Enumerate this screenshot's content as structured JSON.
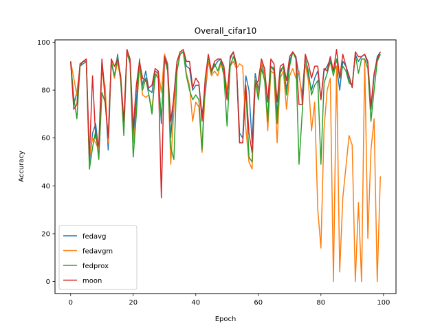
{
  "chart_data": {
    "type": "line",
    "title": "Overall_cifar10",
    "xlabel": "Epoch",
    "ylabel": "Accuracy",
    "xlim": [
      -5,
      104
    ],
    "ylim": [
      -5,
      101
    ],
    "xticks": [
      0,
      20,
      40,
      60,
      80,
      100
    ],
    "yticks": [
      0,
      20,
      40,
      60,
      80,
      100
    ],
    "grid": false,
    "legend_position": "lower-left",
    "x": [
      0,
      1,
      2,
      3,
      4,
      5,
      6,
      7,
      8,
      9,
      10,
      11,
      12,
      13,
      14,
      15,
      16,
      17,
      18,
      19,
      20,
      21,
      22,
      23,
      24,
      25,
      26,
      27,
      28,
      29,
      30,
      31,
      32,
      33,
      34,
      35,
      36,
      37,
      38,
      39,
      40,
      41,
      42,
      43,
      44,
      45,
      46,
      47,
      48,
      49,
      50,
      51,
      52,
      53,
      54,
      55,
      56,
      57,
      58,
      59,
      60,
      61,
      62,
      63,
      64,
      65,
      66,
      67,
      68,
      69,
      70,
      71,
      72,
      73,
      74,
      75,
      76,
      77,
      78,
      79,
      80,
      81,
      82,
      83,
      84,
      85,
      86,
      87,
      88,
      89,
      90,
      91,
      92,
      93,
      94,
      95,
      96,
      97,
      98,
      99
    ],
    "series": [
      {
        "name": "fedavg",
        "color": "#1f77b4",
        "values": [
          92,
          74,
          79,
          90,
          91,
          92,
          50,
          62,
          66,
          54,
          92,
          80,
          55,
          92,
          85,
          95,
          84,
          66,
          96,
          92,
          60,
          76,
          92,
          82,
          88,
          80,
          79,
          88,
          87,
          66,
          95,
          91,
          60,
          78,
          92,
          95,
          96,
          90,
          89,
          80,
          82,
          82,
          70,
          78,
          92,
          88,
          90,
          92,
          93,
          88,
          76,
          93,
          96,
          90,
          62,
          60,
          86,
          80,
          58,
          87,
          80,
          91,
          86,
          68,
          90,
          89,
          70,
          88,
          90,
          80,
          92,
          96,
          94,
          86,
          78,
          94,
          86,
          80,
          85,
          88,
          76,
          88,
          90,
          93,
          88,
          90,
          80,
          92,
          90,
          84,
          82,
          95,
          92,
          94,
          95,
          91,
          72,
          86,
          94,
          96
        ]
      },
      {
        "name": "fedavgm",
        "color": "#ff7f0e",
        "values": [
          92,
          85,
          78,
          90,
          92,
          93,
          52,
          60,
          58,
          55,
          88,
          82,
          58,
          93,
          85,
          92,
          84,
          66,
          95,
          92,
          58,
          70,
          90,
          78,
          77,
          78,
          72,
          85,
          88,
          79,
          95,
          90,
          49,
          72,
          88,
          96,
          96,
          87,
          82,
          67,
          75,
          73,
          54,
          80,
          92,
          86,
          88,
          86,
          91,
          89,
          80,
          90,
          92,
          89,
          91,
          90,
          64,
          50,
          47,
          85,
          78,
          92,
          87,
          63,
          88,
          87,
          58,
          85,
          88,
          72,
          86,
          89,
          85,
          88,
          75,
          91,
          84,
          63,
          75,
          30,
          14,
          64,
          80,
          85,
          0,
          90,
          4,
          35,
          48,
          61,
          57,
          0,
          33,
          0,
          93,
          18,
          55,
          68,
          0,
          44
        ]
      },
      {
        "name": "fedprox",
        "color": "#2ca02c",
        "values": [
          92,
          77,
          68,
          90,
          92,
          92,
          47,
          56,
          63,
          51,
          79,
          75,
          60,
          92,
          86,
          94,
          84,
          61,
          96,
          91,
          52,
          70,
          93,
          80,
          85,
          78,
          70,
          87,
          85,
          68,
          93,
          88,
          56,
          51,
          88,
          95,
          96,
          86,
          80,
          76,
          78,
          76,
          55,
          85,
          94,
          87,
          91,
          88,
          92,
          86,
          65,
          90,
          94,
          90,
          58,
          58,
          81,
          52,
          50,
          84,
          76,
          89,
          84,
          67,
          90,
          88,
          66,
          87,
          90,
          78,
          90,
          96,
          93,
          49,
          70,
          93,
          88,
          78,
          82,
          84,
          49,
          83,
          87,
          92,
          86,
          93,
          85,
          90,
          88,
          83,
          82,
          95,
          87,
          93,
          93,
          89,
          67,
          80,
          92,
          95
        ]
      },
      {
        "name": "moon",
        "color": "#d62728",
        "values": [
          92,
          72,
          74,
          91,
          92,
          93,
          52,
          86,
          60,
          57,
          93,
          76,
          60,
          93,
          90,
          93,
          86,
          67,
          97,
          93,
          64,
          82,
          92,
          85,
          84,
          81,
          82,
          89,
          88,
          35,
          94,
          90,
          67,
          77,
          92,
          96,
          97,
          92,
          92,
          81,
          85,
          83,
          67,
          84,
          95,
          88,
          92,
          93,
          93,
          90,
          76,
          94,
          96,
          91,
          58,
          58,
          82,
          62,
          54,
          82,
          84,
          93,
          89,
          75,
          93,
          91,
          75,
          90,
          91,
          84,
          94,
          96,
          94,
          74,
          74,
          95,
          91,
          85,
          90,
          90,
          76,
          89,
          88,
          94,
          88,
          97,
          85,
          95,
          90,
          86,
          81,
          96,
          94,
          94,
          95,
          92,
          73,
          87,
          93,
          96
        ]
      }
    ]
  }
}
